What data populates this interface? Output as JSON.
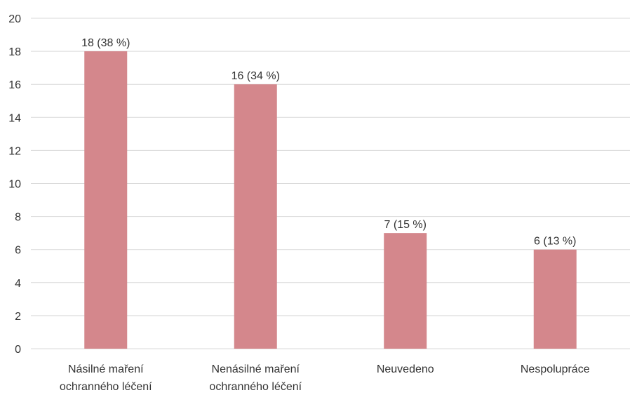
{
  "chart_data": {
    "type": "bar",
    "categories": [
      [
        "Násilné maření",
        "ochranného léčení"
      ],
      [
        "Nenásilné maření",
        "ochranného léčení"
      ],
      [
        "Neuvedeno"
      ],
      [
        "Nespolupráce"
      ]
    ],
    "values": [
      18,
      16,
      7,
      6
    ],
    "data_labels": [
      "18 (38 %)",
      "16 (34 %)",
      "7 (15 %)",
      "6 (13 %)"
    ],
    "y_ticks": [
      "0",
      "2",
      "4",
      "6",
      "8",
      "10",
      "12",
      "14",
      "16",
      "18",
      "20"
    ],
    "ylim": [
      0,
      20
    ],
    "grid": true,
    "bar_color": "#d4878c",
    "title": "",
    "xlabel": "",
    "ylabel": ""
  }
}
